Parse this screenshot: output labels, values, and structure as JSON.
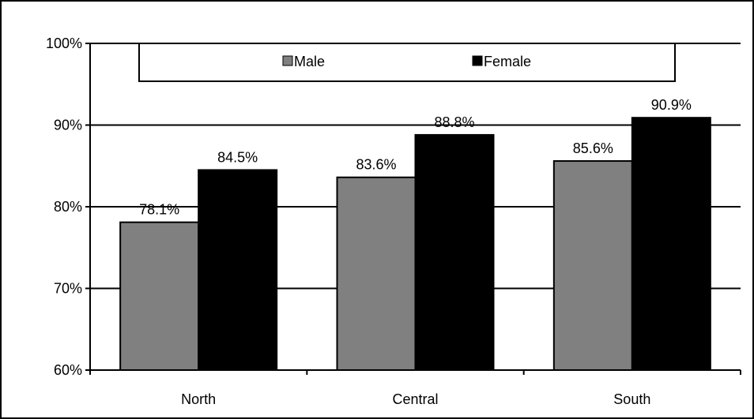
{
  "chart_data": {
    "type": "bar",
    "title": "",
    "xlabel": "",
    "ylabel": "",
    "categories": [
      "North",
      "Central",
      "South"
    ],
    "series": [
      {
        "name": "Male",
        "values": [
          78.1,
          83.6,
          85.6
        ],
        "color": "#808080"
      },
      {
        "name": "Female",
        "values": [
          84.5,
          88.8,
          90.9
        ],
        "color": "#000000"
      }
    ],
    "data_labels": [
      [
        "78.1%",
        "83.6%",
        "85.6%"
      ],
      [
        "84.5%",
        "88.8%",
        "90.9%"
      ]
    ],
    "ylim": [
      60,
      100
    ],
    "yticks": [
      60,
      70,
      80,
      90,
      100
    ],
    "ytick_labels": [
      "60%",
      "70%",
      "80%",
      "90%",
      "100%"
    ],
    "grid": true,
    "legend_position": "top"
  }
}
